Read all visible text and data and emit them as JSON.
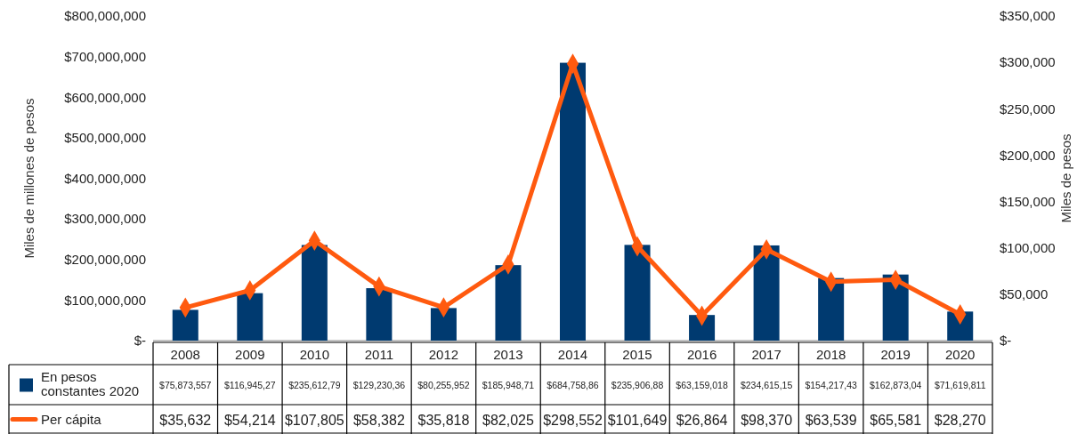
{
  "chart_data": {
    "type": "bar",
    "categories": [
      "2008",
      "2009",
      "2010",
      "2011",
      "2012",
      "2013",
      "2014",
      "2015",
      "2016",
      "2017",
      "2018",
      "2019",
      "2020"
    ],
    "ylabel": "Miles de millones de pesos",
    "y2label": "Miles de pesos",
    "ylim": [
      0,
      800000000
    ],
    "yticks": [
      {
        "value": 0,
        "label": "$-"
      },
      {
        "value": 100000000,
        "label": "$100,000,000"
      },
      {
        "value": 200000000,
        "label": "$200,000,000"
      },
      {
        "value": 300000000,
        "label": "$300,000,000"
      },
      {
        "value": 400000000,
        "label": "$400,000,000"
      },
      {
        "value": 500000000,
        "label": "$500,000,000"
      },
      {
        "value": 600000000,
        "label": "$600,000,000"
      },
      {
        "value": 700000000,
        "label": "$700,000,000"
      },
      {
        "value": 800000000,
        "label": "$800,000,000"
      }
    ],
    "y2lim": [
      0,
      350000
    ],
    "y2ticks": [
      {
        "value": 0,
        "label": "$-"
      },
      {
        "value": 50000,
        "label": "$50,000"
      },
      {
        "value": 100000,
        "label": "$100,000"
      },
      {
        "value": 150000,
        "label": "$150,000"
      },
      {
        "value": 200000,
        "label": "$200,000"
      },
      {
        "value": 250000,
        "label": "$250,000"
      },
      {
        "value": 300000,
        "label": "$300,000"
      },
      {
        "value": 350000,
        "label": "$350,000"
      }
    ],
    "legend": "bottom left",
    "grid": false,
    "series": [
      {
        "name": "En pesos constantes 2020",
        "color": "#003a70",
        "values": [
          75873557,
          116945270,
          235612790,
          129230360,
          80255952,
          185948710,
          684758860,
          235906880,
          63159018,
          234615150,
          154217430,
          162873040,
          71619811
        ],
        "value_labels": [
          "$75,873,557",
          "$116,945,27",
          "$235,612,79",
          "$129,230,36",
          "$80,255,952",
          "$185,948,71",
          "$684,758,86",
          "$235,906,88",
          "$63,159,018",
          "$234,615,15",
          "$154,217,43",
          "$162,873,04",
          "$71,619,811"
        ]
      },
      {
        "name": "Per cápita",
        "type": "line",
        "axis": "y2",
        "color": "#ff5a0f",
        "marker": "diamond",
        "line_style": "solid",
        "values": [
          35632,
          54214,
          107805,
          58382,
          35818,
          82025,
          298552,
          101649,
          26864,
          98370,
          63539,
          65581,
          28270
        ],
        "value_labels": [
          "$35,632",
          "$54,214",
          "$107,805",
          "$58,382",
          "$35,818",
          "$82,025",
          "$298,552",
          "$101,649",
          "$26,864",
          "$98,370",
          "$63,539",
          "$65,581",
          "$28,270"
        ]
      }
    ]
  }
}
